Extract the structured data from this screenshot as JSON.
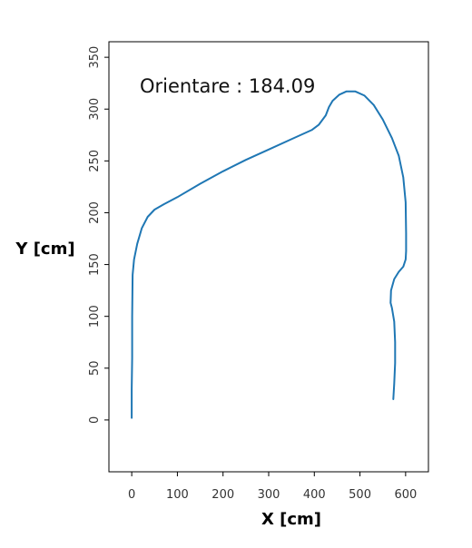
{
  "chart_data": {
    "type": "line",
    "title": "",
    "xlabel": "X [cm]",
    "ylabel": "Y [cm]",
    "xlim": [
      -50,
      650
    ],
    "ylim": [
      -50,
      365
    ],
    "x_ticks": [
      0,
      100,
      200,
      300,
      400,
      500,
      600
    ],
    "y_ticks": [
      0,
      50,
      100,
      150,
      200,
      250,
      300,
      350
    ],
    "grid": false,
    "annotation": "Orientare : 184.09",
    "line_color": "#1f77b4",
    "series": [
      {
        "x": [
          0,
          0,
          1,
          1,
          2,
          5,
          12,
          22,
          35,
          50,
          70,
          100,
          150,
          200,
          250,
          300,
          350,
          395,
          410,
          425,
          432,
          440,
          455,
          470,
          490,
          510,
          530,
          550,
          570,
          585,
          595,
          600,
          601,
          601,
          600,
          595,
          585,
          575,
          568,
          567,
          570,
          575,
          577,
          577,
          575,
          573
        ],
        "y": [
          2,
          30,
          60,
          100,
          140,
          155,
          170,
          185,
          196,
          203,
          208,
          215,
          228,
          240,
          251,
          261,
          271,
          280,
          285,
          294,
          302,
          308,
          314,
          317,
          317,
          313,
          304,
          290,
          272,
          255,
          234,
          210,
          180,
          163,
          155,
          148,
          143,
          136,
          125,
          113,
          108,
          95,
          75,
          55,
          35,
          20
        ]
      }
    ]
  }
}
